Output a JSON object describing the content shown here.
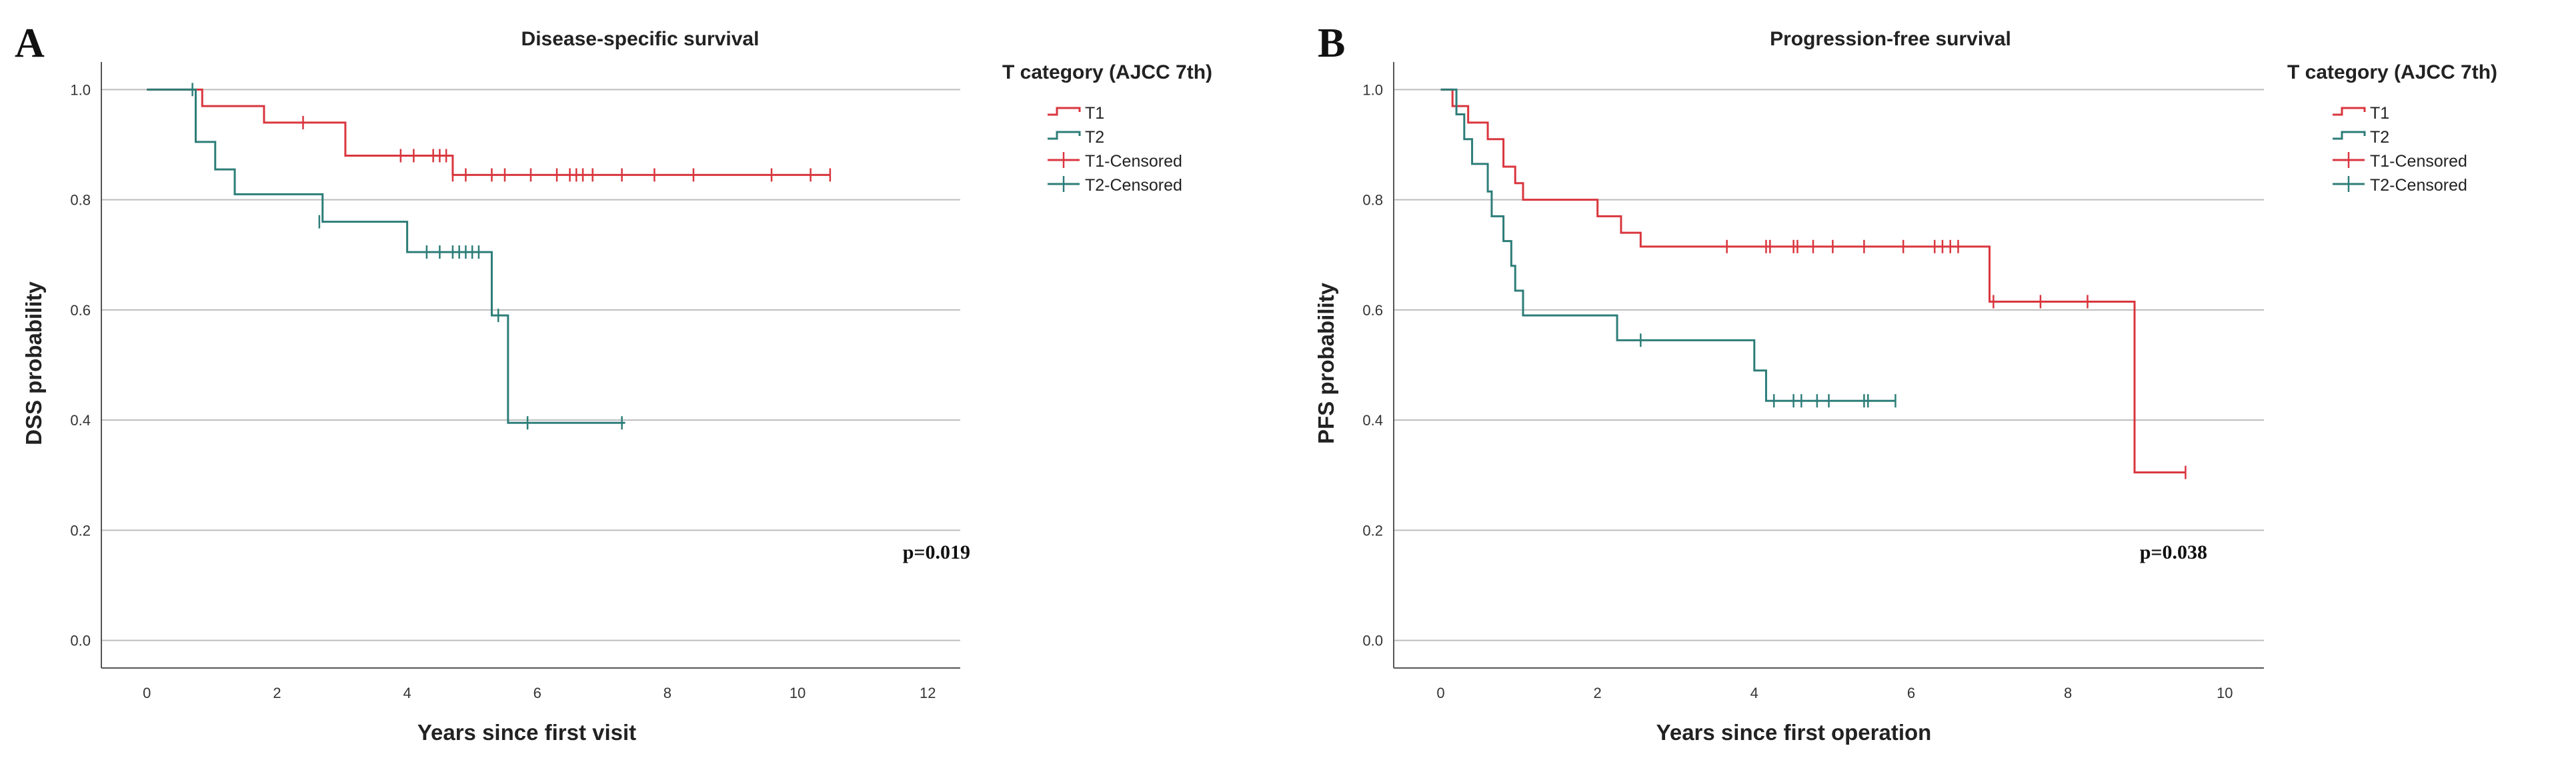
{
  "colors": {
    "T1": "#d9363e",
    "T2": "#2d7d78"
  },
  "chart_data": [
    {
      "panel_letter": "A",
      "type": "line",
      "subtype": "kaplan-meier",
      "title": "Disease-specific survival",
      "xlabel": "Years since first visit",
      "ylabel": "DSS probability",
      "xlim": [
        -0.7,
        12.5
      ],
      "ylim": [
        -0.05,
        1.05
      ],
      "x_ticks": [
        0,
        2,
        4,
        6,
        8,
        10,
        12
      ],
      "x_tick_labels": [
        "0",
        "2",
        "4",
        "6",
        "8",
        "10",
        "12"
      ],
      "y_ticks": [
        0.0,
        0.2,
        0.4,
        0.6,
        0.8,
        1.0
      ],
      "y_tick_labels": [
        "0.0",
        "0.2",
        "0.4",
        "0.6",
        "0.8",
        "1.0"
      ],
      "grid": true,
      "legend_title": "T category (AJCC 7th)",
      "legend_entries": [
        "T1",
        "T2",
        "T1-Censored",
        "T2-Censored"
      ],
      "annotation": "p=0.019",
      "series": [
        {
          "name": "T1",
          "steps": [
            [
              0,
              1.0
            ],
            [
              0.85,
              0.97
            ],
            [
              1.8,
              0.94
            ],
            [
              3.05,
              0.88
            ],
            [
              4.7,
              0.845
            ],
            [
              10.5,
              0.845
            ]
          ],
          "censored": [
            [
              2.4,
              0.94
            ],
            [
              3.9,
              0.88
            ],
            [
              4.1,
              0.88
            ],
            [
              4.4,
              0.88
            ],
            [
              4.5,
              0.88
            ],
            [
              4.6,
              0.88
            ],
            [
              4.7,
              0.845
            ],
            [
              4.9,
              0.845
            ],
            [
              5.3,
              0.845
            ],
            [
              5.5,
              0.845
            ],
            [
              5.9,
              0.845
            ],
            [
              6.3,
              0.845
            ],
            [
              6.5,
              0.845
            ],
            [
              6.6,
              0.845
            ],
            [
              6.7,
              0.845
            ],
            [
              6.85,
              0.845
            ],
            [
              7.3,
              0.845
            ],
            [
              7.8,
              0.845
            ],
            [
              8.4,
              0.845
            ],
            [
              9.6,
              0.845
            ],
            [
              10.2,
              0.845
            ],
            [
              10.5,
              0.845
            ]
          ]
        },
        {
          "name": "T2",
          "steps": [
            [
              0,
              1.0
            ],
            [
              0.75,
              0.905
            ],
            [
              1.05,
              0.855
            ],
            [
              1.35,
              0.81
            ],
            [
              2.7,
              0.76
            ],
            [
              4.0,
              0.705
            ],
            [
              5.3,
              0.59
            ],
            [
              5.55,
              0.395
            ],
            [
              7.35,
              0.395
            ]
          ],
          "censored": [
            [
              0.7,
              1.0
            ],
            [
              2.65,
              0.76
            ],
            [
              4.3,
              0.705
            ],
            [
              4.5,
              0.705
            ],
            [
              4.7,
              0.705
            ],
            [
              4.8,
              0.705
            ],
            [
              4.9,
              0.705
            ],
            [
              5.0,
              0.705
            ],
            [
              5.1,
              0.705
            ],
            [
              5.4,
              0.59
            ],
            [
              5.85,
              0.395
            ],
            [
              7.3,
              0.395
            ]
          ]
        }
      ]
    },
    {
      "panel_letter": "B",
      "type": "line",
      "subtype": "kaplan-meier",
      "title": "Progression-free survival",
      "xlabel": "Years since first operation",
      "ylabel": "PFS probability",
      "xlim": [
        -0.6,
        10.5
      ],
      "ylim": [
        -0.05,
        1.05
      ],
      "x_ticks": [
        0,
        2,
        4,
        6,
        8,
        10
      ],
      "x_tick_labels": [
        "0",
        "2",
        "4",
        "6",
        "8",
        "10"
      ],
      "y_ticks": [
        0.0,
        0.2,
        0.4,
        0.6,
        0.8,
        1.0
      ],
      "y_tick_labels": [
        "0.0",
        "0.2",
        "0.4",
        "0.6",
        "0.8",
        "1.0"
      ],
      "grid": true,
      "legend_title": "T category (AJCC 7th)",
      "legend_entries": [
        "T1",
        "T2",
        "T1-Censored",
        "T2-Censored"
      ],
      "annotation": "p=0.038",
      "series": [
        {
          "name": "T1",
          "steps": [
            [
              0,
              1.0
            ],
            [
              0.15,
              0.97
            ],
            [
              0.35,
              0.94
            ],
            [
              0.6,
              0.91
            ],
            [
              0.8,
              0.86
            ],
            [
              0.95,
              0.83
            ],
            [
              1.05,
              0.8
            ],
            [
              2.0,
              0.77
            ],
            [
              2.3,
              0.74
            ],
            [
              2.55,
              0.715
            ],
            [
              7.0,
              0.615
            ],
            [
              8.85,
              0.305
            ],
            [
              9.5,
              0.305
            ]
          ],
          "censored": [
            [
              3.65,
              0.715
            ],
            [
              4.15,
              0.715
            ],
            [
              4.2,
              0.715
            ],
            [
              4.5,
              0.715
            ],
            [
              4.55,
              0.715
            ],
            [
              4.75,
              0.715
            ],
            [
              5.0,
              0.715
            ],
            [
              5.4,
              0.715
            ],
            [
              5.9,
              0.715
            ],
            [
              6.3,
              0.715
            ],
            [
              6.4,
              0.715
            ],
            [
              6.5,
              0.715
            ],
            [
              6.6,
              0.715
            ],
            [
              7.05,
              0.615
            ],
            [
              7.65,
              0.615
            ],
            [
              8.25,
              0.615
            ],
            [
              9.5,
              0.305
            ]
          ]
        },
        {
          "name": "T2",
          "steps": [
            [
              0,
              1.0
            ],
            [
              0.2,
              0.955
            ],
            [
              0.3,
              0.91
            ],
            [
              0.4,
              0.865
            ],
            [
              0.6,
              0.815
            ],
            [
              0.65,
              0.77
            ],
            [
              0.8,
              0.725
            ],
            [
              0.9,
              0.68
            ],
            [
              0.95,
              0.635
            ],
            [
              1.05,
              0.59
            ],
            [
              2.25,
              0.545
            ],
            [
              4.0,
              0.49
            ],
            [
              4.15,
              0.435
            ],
            [
              5.8,
              0.435
            ]
          ],
          "censored": [
            [
              2.55,
              0.545
            ],
            [
              4.25,
              0.435
            ],
            [
              4.5,
              0.435
            ],
            [
              4.6,
              0.435
            ],
            [
              4.8,
              0.435
            ],
            [
              4.95,
              0.435
            ],
            [
              5.4,
              0.435
            ],
            [
              5.45,
              0.435
            ],
            [
              5.8,
              0.435
            ]
          ]
        }
      ]
    }
  ]
}
